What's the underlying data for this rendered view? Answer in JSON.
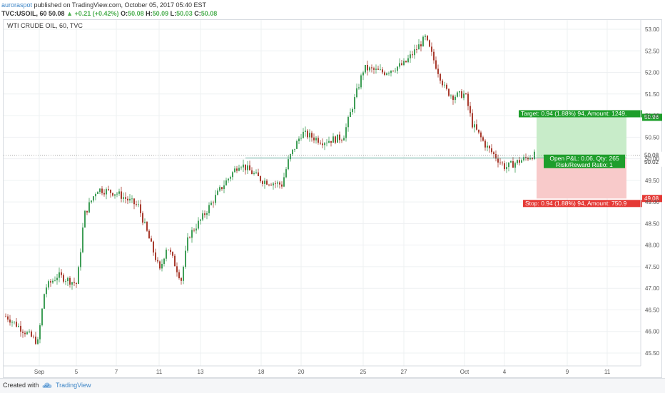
{
  "header": {
    "author": "auroraspot",
    "published": "published on TradingView.com, October 05, 2017 05:40 EST",
    "symbol": "TVC:USOIL, 60",
    "last": "50.08",
    "change": "+0.21 (+0.42%)",
    "o_label": "O:",
    "o": "50.08",
    "h_label": "H:",
    "h": "50.09",
    "l_label": "L:",
    "l": "50.03",
    "c_label": "C:",
    "c": "50.08"
  },
  "symbol_label": "WTI CRUDE OIL, 60, TVC",
  "footer": {
    "created": "Created with",
    "brand": "TradingView"
  },
  "colors": {
    "up": "#26a69a",
    "down": "#c2473d",
    "candle_up": "#3f9e57",
    "candle_down": "#a83b2e",
    "target_fill": "#c8ecc9",
    "stop_fill": "#f8caca",
    "target_label": "#1e9e2b",
    "stop_label": "#e53935",
    "grid": "#eef0f2",
    "price_line": "#3c9c87"
  },
  "chart_data": {
    "type": "candlestick",
    "title": "WTI CRUDE OIL, 60, TVC",
    "y_ticks": [
      "53.00",
      "52.50",
      "52.00",
      "51.50",
      "51.00",
      "50.50",
      "50.00",
      "49.50",
      "49.00",
      "48.50",
      "48.00",
      "47.50",
      "47.00",
      "46.50",
      "46.00",
      "45.50"
    ],
    "ylim": [
      45.3,
      53.15
    ],
    "x_ticks": [
      "Sep",
      "5",
      "7",
      "11",
      "13",
      "18",
      "20",
      "25",
      "27",
      "Oct",
      "4",
      "9",
      "11"
    ],
    "grid": true,
    "price_trajectory": [
      [
        "Aug 31",
        46.35
      ],
      [
        "Sep 1",
        45.75
      ],
      [
        "Sep 1",
        47.0
      ],
      [
        "Sep 4",
        47.3
      ],
      [
        "Sep 5",
        47.1
      ],
      [
        "Sep 5",
        48.7
      ],
      [
        "Sep 6",
        49.3
      ],
      [
        "Sep 7",
        49.2
      ],
      [
        "Sep 8",
        48.9
      ],
      [
        "Sep 11",
        47.4
      ],
      [
        "Sep 11",
        48.0
      ],
      [
        "Sep 12",
        47.2
      ],
      [
        "Sep 12",
        48.2
      ],
      [
        "Sep 13",
        48.6
      ],
      [
        "Sep 14",
        49.3
      ],
      [
        "Sep 15",
        49.9
      ],
      [
        "Sep 18",
        49.5
      ],
      [
        "Sep 19",
        49.4
      ],
      [
        "Sep 19",
        50.0
      ],
      [
        "Sep 20",
        50.6
      ],
      [
        "Sep 21",
        50.4
      ],
      [
        "Sep 22",
        50.5
      ],
      [
        "Sep 25",
        52.1
      ],
      [
        "Sep 26",
        52.0
      ],
      [
        "Sep 27",
        52.2
      ],
      [
        "Sep 28",
        52.8
      ],
      [
        "Sep 29",
        51.6
      ],
      [
        "Sep 29",
        51.45
      ],
      [
        "Oct 2",
        51.5
      ],
      [
        "Oct 2",
        50.8
      ],
      [
        "Oct 3",
        50.3
      ],
      [
        "Oct 4",
        49.8
      ],
      [
        "Oct 5",
        50.08
      ]
    ],
    "last_price": "50.08",
    "countdown": "19:21",
    "entry_price": "50.02",
    "position_tool": {
      "target_price": "50.96",
      "stop_price": "49.08",
      "target_label": "Target: 0.94 (1.88%) 94, Amount: 1249.",
      "stop_label": "Stop: 0.94 (1.88%) 94, Amount: 750.9",
      "pnl_label": "Open P&L: 0.06, Qty: 265",
      "rr_label": "Risk/Reward Ratio: 1"
    }
  }
}
